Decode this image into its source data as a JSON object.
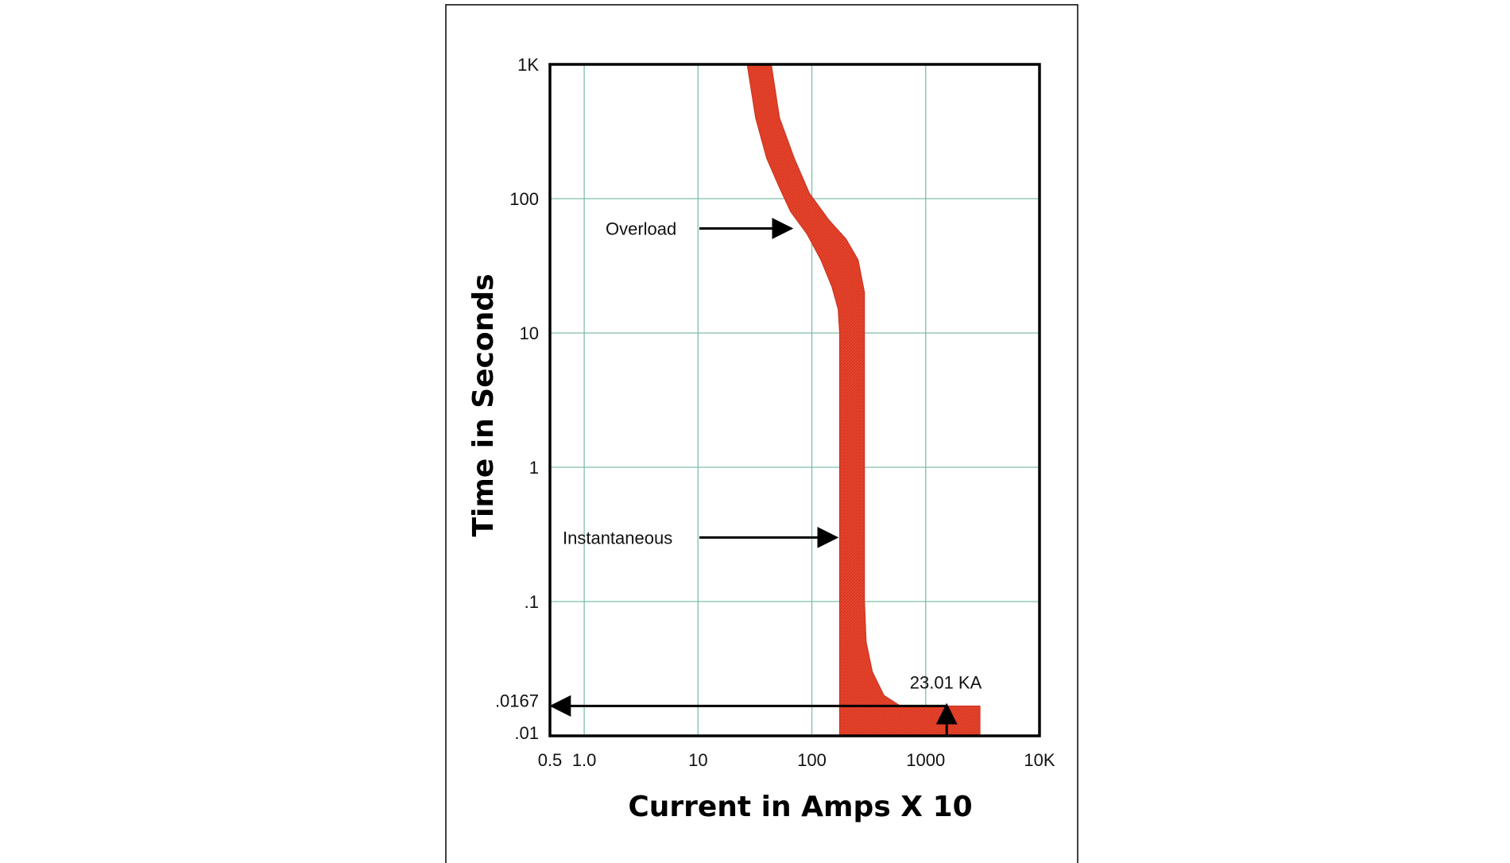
{
  "chart_data": {
    "type": "area",
    "title": "",
    "xlabel": "Current in Amps X 10",
    "ylabel": "Time in Seconds",
    "x_scale": "log",
    "y_scale": "log",
    "xlim": [
      0.5,
      10000
    ],
    "ylim": [
      0.01,
      1000
    ],
    "x_tick_values": [
      0.5,
      1,
      10,
      100,
      1000,
      10000
    ],
    "x_tick_labels": [
      "0.5",
      "1.0",
      "10",
      "100",
      "1000",
      "10K"
    ],
    "x_grid_values": [
      1,
      10,
      100,
      1000
    ],
    "y_tick_values": [
      0.01,
      0.0167,
      0.1,
      1,
      10,
      100,
      1000
    ],
    "y_tick_labels": [
      ".01",
      ".0167",
      ".1",
      "1",
      "10",
      "100",
      "1K"
    ],
    "y_grid_values": [
      0.1,
      1,
      10,
      100
    ],
    "grid": true,
    "colors": {
      "band": "#e8432b",
      "band_stroke": "#c9331f",
      "grid": "#7fbfa8",
      "axes": "#000000",
      "frame": "#000000"
    },
    "series": [
      {
        "band_left": [
          [
            27,
            1000
          ],
          [
            32,
            400
          ],
          [
            40,
            200
          ],
          [
            52,
            120
          ],
          [
            65,
            80
          ],
          [
            90,
            55
          ],
          [
            120,
            35
          ],
          [
            150,
            22
          ],
          [
            170,
            15
          ],
          [
            175,
            10
          ],
          [
            175,
            1
          ],
          [
            175,
            0.1
          ],
          [
            175,
            0.01
          ]
        ],
        "band_right": [
          [
            3000,
            0.01
          ],
          [
            3000,
            0.0167
          ],
          [
            1200,
            0.0167
          ],
          [
            600,
            0.0167
          ],
          [
            430,
            0.02
          ],
          [
            340,
            0.03
          ],
          [
            300,
            0.05
          ],
          [
            290,
            0.1
          ],
          [
            290,
            1
          ],
          [
            290,
            10
          ],
          [
            290,
            20
          ],
          [
            255,
            35
          ],
          [
            200,
            50
          ],
          [
            140,
            70
          ],
          [
            95,
            110
          ],
          [
            70,
            200
          ],
          [
            52,
            400
          ],
          [
            44,
            1000
          ]
        ]
      }
    ],
    "annotations": [
      {
        "text": "Overload",
        "arrow_to": [
          68,
          60
        ]
      },
      {
        "text": "Instantaneous",
        "arrow_to": [
          170,
          0.3
        ]
      },
      {
        "text": "23.01 KA",
        "arrow_from": [
          1530,
          0.01
        ],
        "arrow_to": [
          1530,
          0.0167
        ]
      }
    ],
    "reference_line": {
      "y": 0.0167,
      "x_from": 1530,
      "x_to": 0.5,
      "label": ".0167"
    }
  }
}
